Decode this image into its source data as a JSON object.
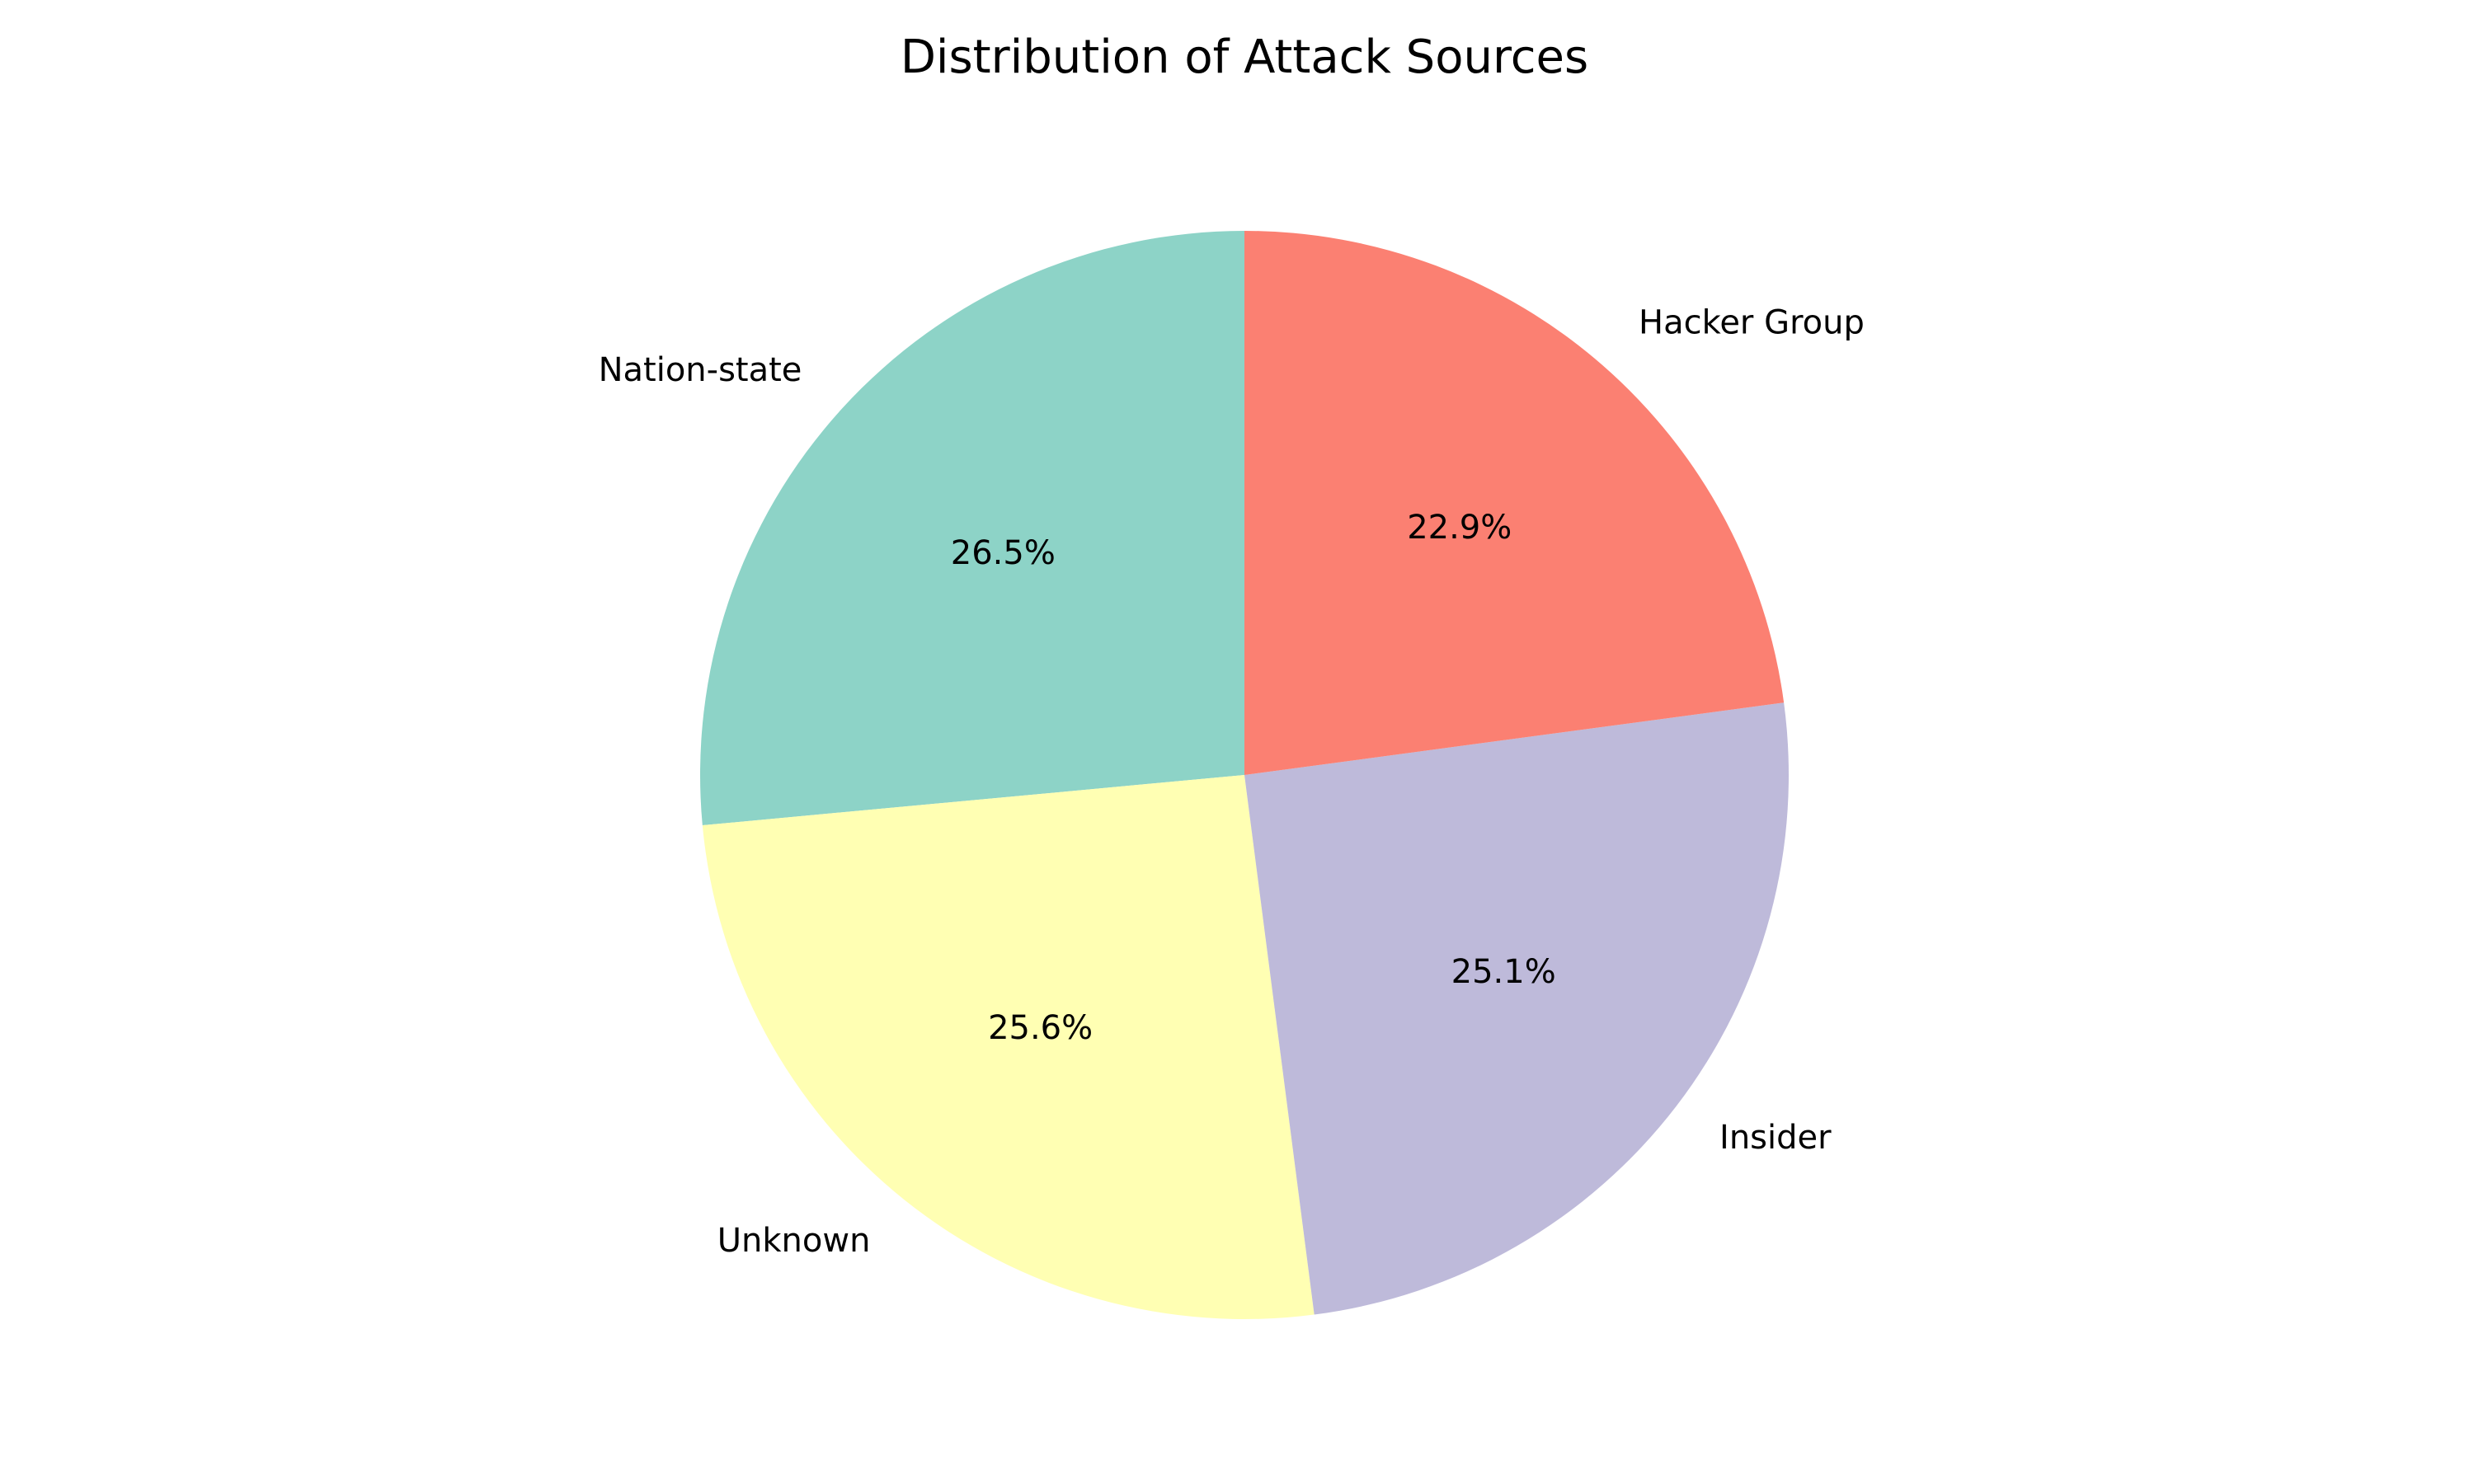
{
  "chart_data": {
    "type": "pie",
    "title": "Distribution of Attack Sources",
    "categories": [
      "Nation-state",
      "Unknown",
      "Insider",
      "Hacker Group"
    ],
    "values": [
      26.5,
      25.6,
      25.1,
      22.9
    ],
    "percent_labels": [
      "26.5%",
      "25.6%",
      "25.1%",
      "22.9%"
    ],
    "colors": [
      "#8dd3c7",
      "#ffffb3",
      "#bebada",
      "#fb8072"
    ],
    "start_angle_deg": 90,
    "direction": "counterclockwise",
    "legend": "none"
  }
}
